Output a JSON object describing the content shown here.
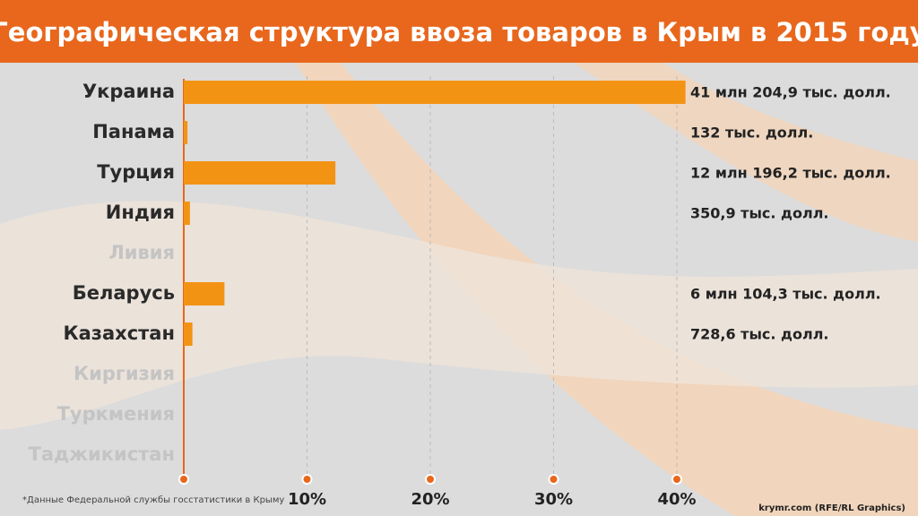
{
  "chart_data": {
    "type": "bar",
    "orientation": "horizontal",
    "title": "Географическая структура ввоза товаров в Крым в 2015 году",
    "categories": [
      "Украина",
      "Панама",
      "Турция",
      "Индия",
      "Ливия",
      "Беларусь",
      "Казахстан",
      "Киргизия",
      "Туркмения",
      "Таджикистан"
    ],
    "values": [
      40.7,
      0.3,
      12.3,
      0.5,
      0,
      3.3,
      0.7,
      0,
      0,
      0
    ],
    "value_labels": [
      "41 млн 204,9 тыс. долл.",
      "132 тыс. долл.",
      "12 млн 196,2 тыс. долл.",
      "350,9 тыс. долл.",
      null,
      "6 млн 104,3 тыс. долл.",
      "728,6 тыс. долл.",
      null,
      null,
      null
    ],
    "color": "#f39314",
    "xlim": [
      0,
      40
    ],
    "xticks": [
      {
        "value": 10,
        "label": "10%"
      },
      {
        "value": 20,
        "label": "20%"
      },
      {
        "value": 30,
        "label": "30%"
      },
      {
        "value": 40,
        "label": "40%"
      }
    ],
    "grid": true,
    "footnote": "*Данные Федеральной службы госстатистики в Крыму",
    "source": "krymr.com (RFE/RL Graphics)"
  }
}
